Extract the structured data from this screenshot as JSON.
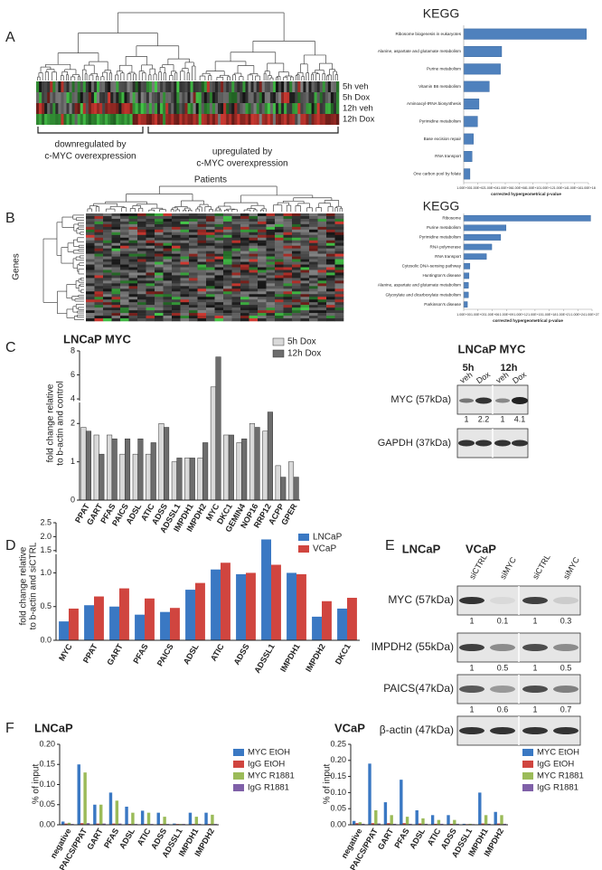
{
  "panel_labels": [
    "A",
    "B",
    "C",
    "D",
    "E",
    "F"
  ],
  "heatmap_a": {
    "rows": [
      "5h veh",
      "5h Dox",
      "12h veh",
      "12h Dox"
    ],
    "down_label": [
      "downregulated by",
      "c-MYC overexpression"
    ],
    "up_label": [
      "upregulated by",
      "c-MYC overexpression"
    ]
  },
  "heatmap_b": {
    "top_label": "Patients",
    "side_label": "Genes"
  },
  "blot_c": {
    "title": "LNCaP MYC",
    "times": [
      "5h",
      "12h"
    ],
    "lanes": [
      "veh",
      "Dox",
      "veh",
      "Dox"
    ],
    "rows": [
      {
        "label": "MYC (57kDa)",
        "quant": [
          1,
          2.2,
          1,
          4.1
        ]
      },
      {
        "label": "GAPDH (37kDa)"
      }
    ]
  },
  "blot_e": {
    "cells": [
      "LNCaP",
      "VCaP"
    ],
    "lanes": [
      "siCTRL",
      "siMYC",
      "siCTRL",
      "siMYC"
    ],
    "rows": [
      {
        "label": "MYC (57kDa)",
        "quant": [
          1,
          0.1,
          1,
          0.3
        ]
      },
      {
        "label": "IMPDH2 (55kDa)",
        "quant": [
          1,
          0.5,
          1,
          0.5
        ]
      },
      {
        "label": "PAICS(47kDa)",
        "quant": [
          1,
          0.6,
          1,
          0.7
        ]
      },
      {
        "label": "β-actin (47kDa)"
      }
    ]
  },
  "chart_data": [
    {
      "type": "hbar",
      "title": "KEGG",
      "categories": [
        "Ribosome biogenesis in eukaryotes",
        "Alanine, aspartate and glutamate metabolism",
        "Purine metabolism",
        "Vitamin B6 metabolism",
        "Aminoacyl-tRNA biosynthesis",
        "Pyrimidine metabolism",
        "Base excision repair",
        "RNA transport",
        "One carbon pool by folate"
      ],
      "values": [
        5e+17,
        300000.0,
        200000.0,
        5000.0,
        160,
        100,
        25,
        16,
        8
      ],
      "color": "#4f81bd",
      "log_x": true,
      "xlim": [
        1,
        1e+18
      ],
      "xticks": [
        {
          "value": 1,
          "label": "1.00E+00"
        },
        {
          "value": 100.0,
          "label": "1.00E+02"
        },
        {
          "value": 10000.0,
          "label": "1.00E+04"
        },
        {
          "value": 1000000.0,
          "label": "1.00E+06"
        },
        {
          "value": 100000000.0,
          "label": "1.00E+08"
        },
        {
          "value": 10000000000.0,
          "label": "1.00E+10"
        },
        {
          "value": 1000000000000.0,
          "label": "1.00E+12"
        },
        {
          "value": 100000000000000.0,
          "label": "1.00E+14"
        },
        {
          "value": 1e+16,
          "label": "1.00E+16"
        },
        {
          "value": 1e+18,
          "label": "1.00E+18"
        }
      ],
      "xlabel": "corrected hypergeometrical p-value"
    },
    {
      "type": "hbar",
      "title": "KEGG",
      "categories": [
        "Ribosome",
        "Purine metabolism",
        "Pyrimidine metabolism",
        "RNA polymerase",
        "RNA transport",
        "Cytosolic DNA-sensing pathway",
        "Huntington's disease",
        "Alanine, aspartate and glutamate metabolism",
        "Glyoxylate and dicarboxylate metabolism",
        "Parkinson's disease"
      ],
      "values": [
        5e+26,
        800000000.0,
        60000000.0,
        800000.0,
        60000.0,
        20,
        13,
        10,
        10,
        6
      ],
      "color": "#4f81bd",
      "log_x": true,
      "xlim": [
        1,
        1e+27
      ],
      "xticks": [
        {
          "value": 1,
          "label": "1.00E+00"
        },
        {
          "value": 1000.0,
          "label": "1.00E+03"
        },
        {
          "value": 1000000.0,
          "label": "1.00E+06"
        },
        {
          "value": 1000000000.0,
          "label": "1.00E+09"
        },
        {
          "value": 1000000000000.0,
          "label": "1.00E+12"
        },
        {
          "value": 1000000000000000.0,
          "label": "1.00E+15"
        },
        {
          "value": 1e+18,
          "label": "1.00E+18"
        },
        {
          "value": 1e+21,
          "label": "1.00E+21"
        },
        {
          "value": 1e+24,
          "label": "1.00E+24"
        },
        {
          "value": 1e+27,
          "label": "1.00E+27"
        }
      ],
      "xlabel": "corrected hypergeometrical p-value"
    },
    {
      "type": "bar",
      "title": "LNCaP MYC",
      "ylabel": [
        "fold change relative",
        "to b-actin and control"
      ],
      "categories": [
        "PPAT",
        "GART",
        "PFAS",
        "PAICS",
        "ADSL",
        "ATIC",
        "ADSS",
        "ADSSL1",
        "IMPDH1",
        "IMPDH2",
        "MYC",
        "DKC1",
        "GEMIN4",
        "NOP16",
        "RRP12",
        "ACPP",
        "GPER"
      ],
      "series": [
        {
          "name": "5h Dox",
          "color": "#d9d9d9",
          "values": [
            1.9,
            1.7,
            1.7,
            1.2,
            1.2,
            1.2,
            2.0,
            1.0,
            1.1,
            1.1,
            5.0,
            1.7,
            1.5,
            2.0,
            1.8,
            0.9,
            1.0
          ]
        },
        {
          "name": "12h Dox",
          "color": "#6d6d6d",
          "values": [
            1.8,
            1.2,
            1.6,
            1.6,
            1.6,
            1.5,
            1.9,
            1.1,
            1.1,
            1.5,
            7.5,
            1.7,
            1.6,
            1.9,
            2.3,
            0.6,
            0.6
          ]
        }
      ],
      "ylim": [
        0,
        8
      ],
      "ybreak": [
        2.5,
        4
      ],
      "yticks": [
        0,
        1,
        2,
        4,
        6,
        8
      ]
    },
    {
      "type": "bar",
      "ylabel": [
        "fold change relative",
        "to b-actin and siCTRL"
      ],
      "categories": [
        "MYC",
        "PPAT",
        "GART",
        "PFAS",
        "PAICS",
        "ADSL",
        "ATIC",
        "ADSS",
        "ADSSL1",
        "IMPDH1",
        "IMPDH2",
        "DKC1"
      ],
      "series": [
        {
          "name": "LNCaP",
          "color": "#3a78c3",
          "values": [
            0.28,
            0.52,
            0.5,
            0.38,
            0.42,
            0.75,
            1.05,
            0.98,
            1.9,
            1.0,
            0.35,
            0.47
          ]
        },
        {
          "name": "VCaP",
          "color": "#d0453f",
          "values": [
            0.47,
            0.65,
            0.77,
            0.62,
            0.48,
            0.85,
            1.15,
            1.0,
            1.12,
            0.98,
            0.58,
            0.63
          ]
        }
      ],
      "ylim": [
        0,
        2.5
      ],
      "ybreak": [
        1.25,
        1.5
      ],
      "yticks": [
        {
          "value": 0,
          "label": "0.0"
        },
        {
          "value": 0.5,
          "label": "0.5"
        },
        {
          "value": 1,
          "label": "1.0"
        },
        {
          "value": 1.5,
          "label": "1.5"
        },
        {
          "value": 2,
          "label": "2.0"
        },
        {
          "value": 2.5,
          "label": "2.5"
        }
      ]
    },
    {
      "type": "bar",
      "title": "LNCaP",
      "ylabel": "% of input",
      "categories": [
        "negative",
        "PAICS/PPAT",
        "GART",
        "PFAS",
        "ADSL",
        "ATIC",
        "ADSS",
        "ADSSL1",
        "IMPDH1",
        "IMPDH2"
      ],
      "series": [
        {
          "name": "MYC EtOH",
          "color": "#3a78c3",
          "values": [
            0.008,
            0.15,
            0.05,
            0.08,
            0.045,
            0.035,
            0.03,
            0.003,
            0.03,
            0.03
          ]
        },
        {
          "name": "IgG EtOH",
          "color": "#d0453f",
          "values": [
            0.003,
            0.004,
            0.003,
            0.003,
            0.002,
            0.002,
            0.002,
            0.002,
            0.002,
            0.002
          ]
        },
        {
          "name": "MYC R1881",
          "color": "#9bbb59",
          "values": [
            0.005,
            0.13,
            0.05,
            0.06,
            0.03,
            0.03,
            0.02,
            0.002,
            0.02,
            0.025
          ]
        },
        {
          "name": "IgG R1881",
          "color": "#7f60a8",
          "values": [
            0.002,
            0.004,
            0.003,
            0.003,
            0.002,
            0.002,
            0.002,
            0.002,
            0.002,
            0.002
          ]
        }
      ],
      "ylim": [
        0,
        0.2
      ],
      "yticks": [
        {
          "value": 0,
          "label": "0.00"
        },
        {
          "value": 0.05,
          "label": "0.05"
        },
        {
          "value": 0.1,
          "label": "0.10"
        },
        {
          "value": 0.15,
          "label": "0.15"
        },
        {
          "value": 0.2,
          "label": "0.20"
        }
      ]
    },
    {
      "type": "bar",
      "title": "VCaP",
      "ylabel": "% of input",
      "categories": [
        "negative",
        "PAICS/PPAT",
        "GART",
        "PFAS",
        "ADSL",
        "ATIC",
        "ADSS",
        "ADSSL1",
        "IMPDH1",
        "IMPDH2"
      ],
      "series": [
        {
          "name": "MYC EtOH",
          "color": "#3a78c3",
          "values": [
            0.012,
            0.19,
            0.07,
            0.14,
            0.045,
            0.03,
            0.03,
            0.003,
            0.1,
            0.04
          ]
        },
        {
          "name": "IgG EtOH",
          "color": "#d0453f",
          "values": [
            0.005,
            0.005,
            0.005,
            0.005,
            0.004,
            0.003,
            0.003,
            0.002,
            0.004,
            0.004
          ]
        },
        {
          "name": "MYC R1881",
          "color": "#9bbb59",
          "values": [
            0.008,
            0.045,
            0.03,
            0.025,
            0.02,
            0.015,
            0.015,
            0.003,
            0.03,
            0.03
          ]
        },
        {
          "name": "IgG R1881",
          "color": "#7f60a8",
          "values": [
            0.003,
            0.004,
            0.003,
            0.003,
            0.003,
            0.003,
            0.003,
            0.002,
            0.003,
            0.003
          ]
        }
      ],
      "ylim": [
        0,
        0.25
      ],
      "yticks": [
        {
          "value": 0,
          "label": "0.00"
        },
        {
          "value": 0.05,
          "label": "0.05"
        },
        {
          "value": 0.1,
          "label": "0.10"
        },
        {
          "value": 0.15,
          "label": "0.15"
        },
        {
          "value": 0.2,
          "label": "0.20"
        },
        {
          "value": 0.25,
          "label": "0.25"
        }
      ]
    }
  ]
}
